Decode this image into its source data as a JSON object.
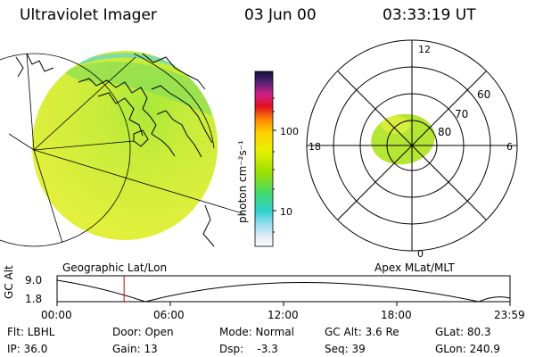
{
  "header": {
    "title": "Ultraviolet Imager",
    "date": "03 Jun 00",
    "time": "03:33:19 UT"
  },
  "colorbar": {
    "unit_label": "photon cm⁻²s⁻¹",
    "ticks": [
      "100",
      "10"
    ]
  },
  "polar": {
    "mlt_labels": [
      "12",
      "6",
      "0",
      "18"
    ],
    "lat_labels": [
      "60",
      "70",
      "80"
    ]
  },
  "panel_labels": {
    "left": "Geographic Lat/Lon",
    "right": "Apex MLat/MLT"
  },
  "altitude_plot": {
    "ylabel": "GC Alt",
    "ymax": "9.0",
    "ymin": "1.8",
    "x_ticks": [
      "00:00",
      "06:00",
      "12:00",
      "18:00",
      "23:59"
    ],
    "current_time_fraction": 0.148,
    "colors": {
      "marker": "#cc0000"
    }
  },
  "info": {
    "filter": "Flt: LBHL",
    "door": "Door: Open",
    "mode": "Mode: Normal",
    "gc_alt": "GC Alt: 3.6 Re",
    "glat": "GLat: 80.3",
    "ip": "IP: 36.0",
    "gain": "Gain: 13",
    "dsp": "Dsp:    -3.3",
    "seq": "Seq: 39",
    "glon": "GLon: 240.9"
  }
}
